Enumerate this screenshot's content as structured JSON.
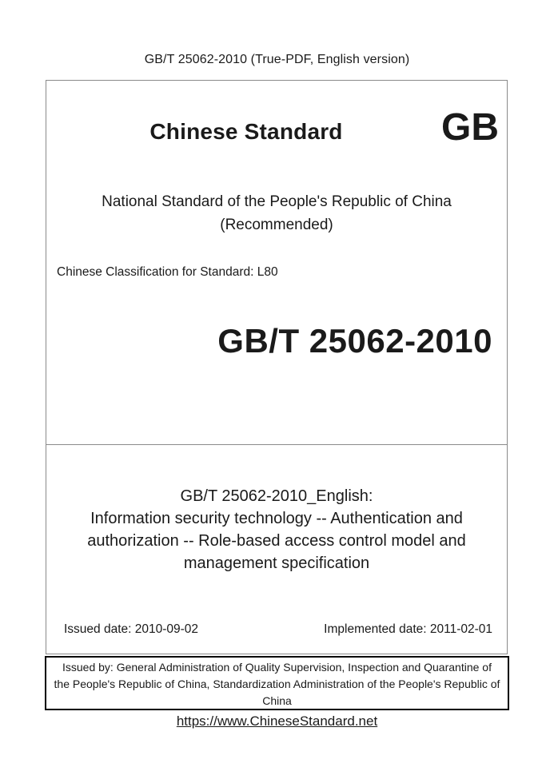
{
  "page": {
    "header": "GB/T 25062-2010 (True-PDF, English version)",
    "footer_link": "https://www.ChineseStandard.net"
  },
  "cover": {
    "brand": "Chinese Standard",
    "logo": "GB",
    "national_line1": "National Standard of the People's Republic of China",
    "national_line2": "(Recommended)",
    "classification": "Chinese Classification for Standard: L80",
    "standard_number": "GB/T 25062-2010"
  },
  "title_block": {
    "lines": [
      "GB/T 25062-2010_English:",
      "Information security technology -- Authentication and",
      "authorization -- Role-based access control model and",
      "management specification"
    ],
    "issued_date": "Issued date: 2010-09-02",
    "implemented_date": "Implemented date: 2011-02-01"
  },
  "issuer_box": {
    "lines": [
      "Issued by: General Administration of Quality Supervision, Inspection and Quarantine of",
      "the People's Republic of China, Standardization Administration of the People's Republic of",
      "China"
    ]
  },
  "colors": {
    "border_gray": "#8a8a8a",
    "border_black": "#000000",
    "text": "#1a1a1a",
    "background": "#ffffff"
  }
}
